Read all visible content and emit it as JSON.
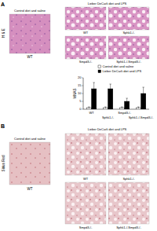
{
  "panels": [
    {
      "label": "A",
      "stain": "H & E",
      "control": {
        "title": "Control diet and saline",
        "genotype": "WT"
      },
      "treated": {
        "title": "Lieber DeCarli diet and LPS",
        "genotypes": [
          "WT",
          "Sphk1-/-",
          "Smpd3-/-",
          "Sphk1-/-Smpd3-/-"
        ]
      }
    },
    {
      "label": "B",
      "stain": "Sirius Red",
      "control": {
        "title": "Control diet and saline",
        "genotype": "WT"
      },
      "treated": {
        "title": "Lieber DeCarli diet and LPS",
        "genotypes": [
          "WT",
          "Sphk1-/-",
          "Smpd3-/-",
          "Sphk1-/-Smpd3-/-"
        ]
      }
    }
  ],
  "chart_data": {
    "type": "bar",
    "y_label": "%NAS",
    "categories": [
      "WT",
      "Sphk1-/-",
      "Smpd3-/-",
      "Sphk1-/-Smpd3-/-"
    ],
    "series": [
      {
        "name": "Control diet and saline",
        "color": "#ffffff",
        "values": [
          1,
          1,
          1,
          1
        ],
        "errors": [
          0.5,
          0.5,
          0.5,
          0.5
        ]
      },
      {
        "name": "Lieber DeCarli diet and LPS",
        "color": "#000000",
        "values": [
          13,
          13,
          5,
          10
        ],
        "errors": [
          4,
          3,
          2,
          4
        ]
      }
    ],
    "ylim": [
      0,
      20
    ],
    "yticks": [
      0,
      5,
      10,
      15,
      20
    ],
    "legend": "top"
  }
}
